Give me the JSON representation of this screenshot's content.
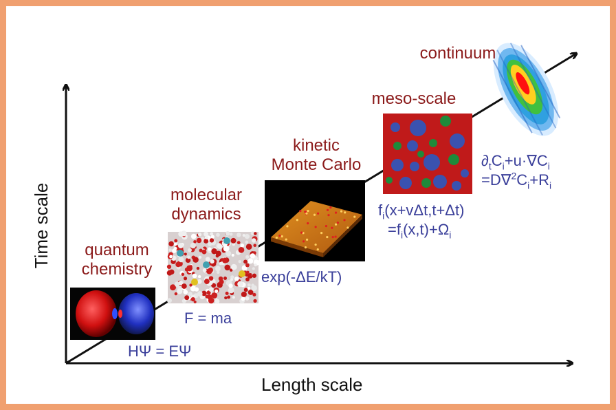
{
  "axes": {
    "x_label": "Length scale",
    "y_label": "Time scale"
  },
  "stages": [
    {
      "id": "quantum",
      "label_line1": "quantum",
      "label_line2": "chemistry",
      "equation": "HΨ = EΨ"
    },
    {
      "id": "md",
      "label_line1": "molecular",
      "label_line2": "dynamics",
      "equation": "F = ma"
    },
    {
      "id": "kmc",
      "label_line1": "kinetic",
      "label_line2": "Monte Carlo",
      "equation": "exp(-ΔE/kT)"
    },
    {
      "id": "meso",
      "label_line1": "meso-scale",
      "label_line2": "",
      "equation": ""
    },
    {
      "id": "continuum",
      "label_line1": "continuum",
      "label_line2": "",
      "equation": ""
    }
  ],
  "colors": {
    "frame": "#f0a070",
    "stage_label": "#8b1a1a",
    "equation": "#3a3f9a",
    "axis": "#111111",
    "meso_background": "#c01a1a",
    "meso_particle_blue": "#3a52b0",
    "meso_particle_green": "#1f8a3a"
  }
}
